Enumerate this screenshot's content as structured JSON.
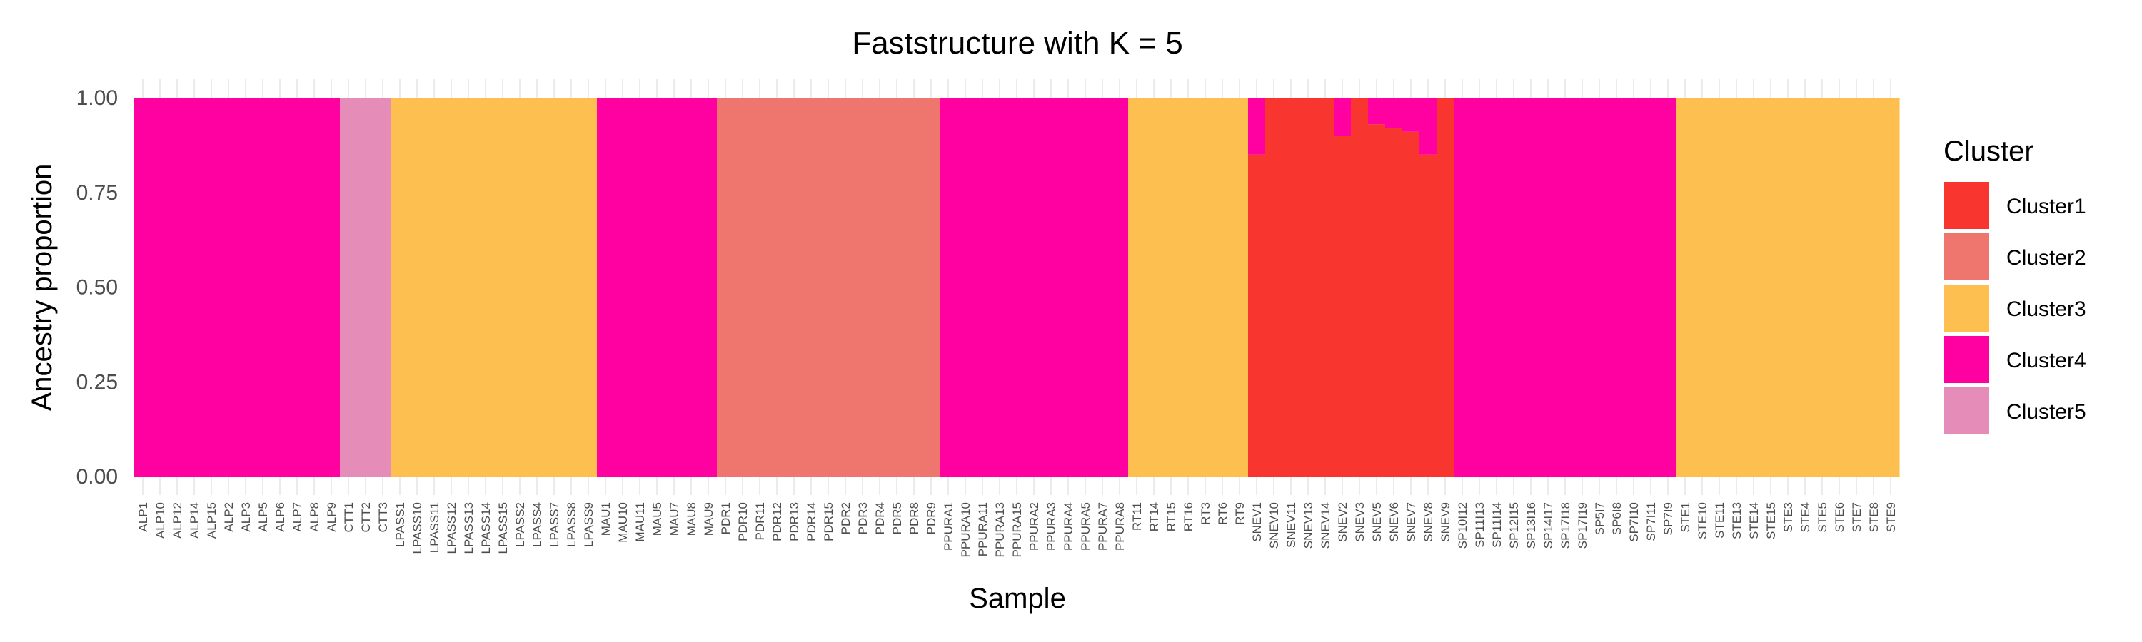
{
  "chart_data": {
    "type": "bar",
    "stacked": true,
    "title": "Faststructure with K = 5",
    "xlabel": "Sample",
    "ylabel": "Ancestry proportion",
    "ylim": [
      0,
      1
    ],
    "yticks": [
      "0.00",
      "0.25",
      "0.50",
      "0.75",
      "1.00"
    ],
    "grid": true,
    "legend": {
      "title": "Cluster",
      "position": "right"
    },
    "categories": [
      "ALP1",
      "ALP10",
      "ALP12",
      "ALP14",
      "ALP15",
      "ALP2",
      "ALP3",
      "ALP5",
      "ALP6",
      "ALP7",
      "ALP8",
      "ALP9",
      "CTT1",
      "CTT2",
      "CTT3",
      "LPASS1",
      "LPASS10",
      "LPASS11",
      "LPASS12",
      "LPASS13",
      "LPASS14",
      "LPASS15",
      "LPASS2",
      "LPASS4",
      "LPASS7",
      "LPASS8",
      "LPASS9",
      "MAU1",
      "MAU10",
      "MAU11",
      "MAU5",
      "MAU7",
      "MAU8",
      "MAU9",
      "PDR1",
      "PDR10",
      "PDR11",
      "PDR12",
      "PDR13",
      "PDR14",
      "PDR15",
      "PDR2",
      "PDR3",
      "PDR4",
      "PDR5",
      "PDR8",
      "PDR9",
      "PPURA1",
      "PPURA10",
      "PPURA11",
      "PPURA13",
      "PPURA15",
      "PPURA2",
      "PPURA3",
      "PPURA4",
      "PPURA5",
      "PPURA7",
      "PPURA8",
      "RT11",
      "RT14",
      "RT15",
      "RT16",
      "RT3",
      "RT6",
      "RT9",
      "SNEV1",
      "SNEV10",
      "SNEV11",
      "SNEV13",
      "SNEV14",
      "SNEV2",
      "SNEV3",
      "SNEV5",
      "SNEV6",
      "SNEV7",
      "SNEV8",
      "SNEV9",
      "SP10I12",
      "SP11I13",
      "SP11I14",
      "SP12I15",
      "SP13I16",
      "SP14I17",
      "SP17I18",
      "SP17I19",
      "SP5I7",
      "SP6I8",
      "SP7I10",
      "SP7I11",
      "SP7I9",
      "STE1",
      "STE10",
      "STE11",
      "STE13",
      "STE14",
      "STE15",
      "STE3",
      "STE4",
      "STE5",
      "STE6",
      "STE7",
      "STE8",
      "STE9"
    ],
    "series": [
      {
        "name": "Cluster1",
        "color": "#F8352F",
        "values": [
          0,
          0,
          0,
          0,
          0,
          0,
          0,
          0,
          0,
          0,
          0,
          0,
          0,
          0,
          0,
          0,
          0,
          0,
          0,
          0,
          0,
          0,
          0,
          0,
          0,
          0,
          0,
          0,
          0,
          0,
          0,
          0,
          0,
          0,
          0,
          0,
          0,
          0,
          0,
          0,
          0,
          0,
          0,
          0,
          0,
          0,
          0,
          0,
          0,
          0,
          0,
          0,
          0,
          0,
          0,
          0,
          0,
          0,
          0,
          0,
          0,
          0,
          0,
          0,
          0,
          0.85,
          1,
          1,
          1,
          1,
          0.9,
          1,
          0.93,
          0.92,
          0.91,
          0.85,
          1,
          0,
          0,
          0,
          0,
          0,
          0,
          0,
          0,
          0,
          0,
          0,
          0,
          0,
          0,
          0,
          0,
          0,
          0,
          0,
          0,
          0,
          0,
          0,
          0,
          0,
          0
        ]
      },
      {
        "name": "Cluster2",
        "color": "#EE766F",
        "values": [
          0,
          0,
          0,
          0,
          0,
          0,
          0,
          0,
          0,
          0,
          0,
          0,
          0,
          0,
          0,
          0,
          0,
          0,
          0,
          0,
          0,
          0,
          0,
          0,
          0,
          0,
          0,
          0,
          0,
          0,
          0,
          0,
          0,
          0,
          1,
          1,
          1,
          1,
          1,
          1,
          1,
          1,
          1,
          1,
          1,
          1,
          1,
          0,
          0,
          0,
          0,
          0,
          0,
          0,
          0,
          0,
          0,
          0,
          0,
          0,
          0,
          0,
          0,
          0,
          0,
          0,
          0,
          0,
          0,
          0,
          0,
          0,
          0,
          0,
          0,
          0,
          0,
          0,
          0,
          0,
          0,
          0,
          0,
          0,
          0,
          0,
          0,
          0,
          0,
          0,
          0,
          0,
          0,
          0,
          0,
          0,
          0,
          0,
          0,
          0,
          0,
          0,
          0
        ]
      },
      {
        "name": "Cluster3",
        "color": "#FDBF50",
        "values": [
          0,
          0,
          0,
          0,
          0,
          0,
          0,
          0,
          0,
          0,
          0,
          0,
          0,
          0,
          0,
          1,
          1,
          1,
          1,
          1,
          1,
          1,
          1,
          1,
          1,
          1,
          1,
          0,
          0,
          0,
          0,
          0,
          0,
          0,
          0,
          0,
          0,
          0,
          0,
          0,
          0,
          0,
          0,
          0,
          0,
          0,
          0,
          0,
          0,
          0,
          0,
          0,
          0,
          0,
          0,
          0,
          0,
          0,
          1,
          1,
          1,
          1,
          1,
          1,
          1,
          0,
          0,
          0,
          0,
          0,
          0,
          0,
          0,
          0,
          0,
          0,
          0,
          0,
          0,
          0,
          0,
          0,
          0,
          0,
          0,
          0,
          0,
          0,
          0,
          0,
          1,
          1,
          1,
          1,
          1,
          1,
          1,
          1,
          1,
          1,
          1,
          1,
          1
        ]
      },
      {
        "name": "Cluster4",
        "color": "#FF00A1",
        "values": [
          1,
          1,
          1,
          1,
          1,
          1,
          1,
          1,
          1,
          1,
          1,
          1,
          0,
          0,
          0,
          0,
          0,
          0,
          0,
          0,
          0,
          0,
          0,
          0,
          0,
          0,
          0,
          1,
          1,
          1,
          1,
          1,
          1,
          1,
          0,
          0,
          0,
          0,
          0,
          0,
          0,
          0,
          0,
          0,
          0,
          0,
          0,
          1,
          1,
          1,
          1,
          1,
          1,
          1,
          1,
          1,
          1,
          1,
          0,
          0,
          0,
          0,
          0,
          0,
          0,
          0.15,
          0,
          0,
          0,
          0,
          0.1,
          0,
          0.07,
          0.08,
          0.09,
          0.15,
          0,
          1,
          1,
          1,
          1,
          1,
          1,
          1,
          1,
          1,
          1,
          1,
          1,
          1,
          0,
          0,
          0,
          0,
          0,
          0,
          0,
          0,
          0,
          0,
          0,
          0,
          0
        ]
      },
      {
        "name": "Cluster5",
        "color": "#E68CB9",
        "values": [
          0,
          0,
          0,
          0,
          0,
          0,
          0,
          0,
          0,
          0,
          0,
          0,
          1,
          1,
          1,
          0,
          0,
          0,
          0,
          0,
          0,
          0,
          0,
          0,
          0,
          0,
          0,
          0,
          0,
          0,
          0,
          0,
          0,
          0,
          0,
          0,
          0,
          0,
          0,
          0,
          0,
          0,
          0,
          0,
          0,
          0,
          0,
          0,
          0,
          0,
          0,
          0,
          0,
          0,
          0,
          0,
          0,
          0,
          0,
          0,
          0,
          0,
          0,
          0,
          0,
          0,
          0,
          0,
          0,
          0,
          0,
          0,
          0,
          0,
          0,
          0,
          0,
          0,
          0,
          0,
          0,
          0,
          0,
          0,
          0,
          0,
          0,
          0,
          0,
          0,
          0,
          0,
          0,
          0,
          0,
          0,
          0,
          0,
          0,
          0,
          0,
          0,
          0
        ]
      }
    ]
  }
}
